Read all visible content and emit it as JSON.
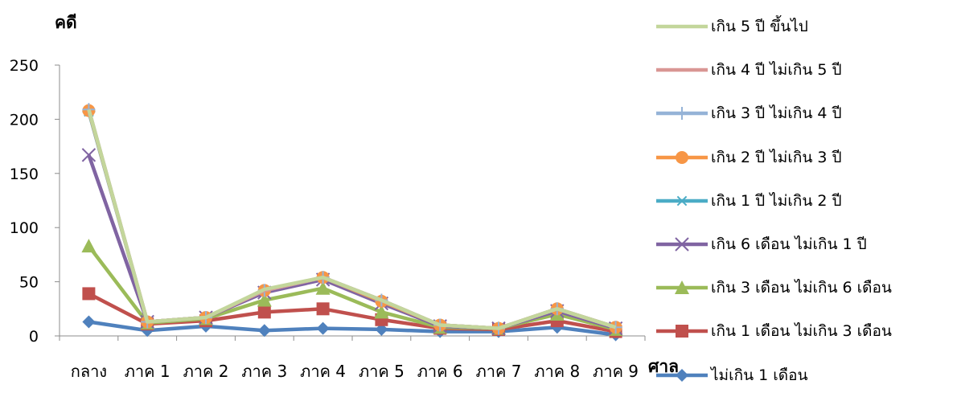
{
  "chart_data": {
    "type": "line",
    "ylabel": "คดี",
    "xlabel": "ศาล",
    "categories": [
      "กลาง",
      "ภาค 1",
      "ภาค 2",
      "ภาค 3",
      "ภาค 4",
      "ภาค 5",
      "ภาค 6",
      "ภาค 7",
      "ภาค 8",
      "ภาค 9"
    ],
    "ylim": [
      0,
      250
    ],
    "yticks": [
      0,
      50,
      100,
      150,
      200,
      250
    ],
    "legend_position": "right",
    "series": [
      {
        "name": "ไม่เกิน 1 เดือน",
        "color": "#4F81BD",
        "marker": "diamond",
        "values": [
          13,
          5,
          9,
          5,
          7,
          6,
          4,
          4,
          8,
          1
        ]
      },
      {
        "name": "เกิน 1 เดือน ไม่เกิน 3 เดือน",
        "color": "#C0504D",
        "marker": "square",
        "values": [
          39,
          11,
          14,
          22,
          25,
          15,
          7,
          6,
          14,
          4
        ]
      },
      {
        "name": "เกิน 3 เดือน ไม่เกิน 6 เดือน",
        "color": "#9BBB59",
        "marker": "triangle",
        "values": [
          83,
          12,
          16,
          33,
          44,
          22,
          8,
          7,
          20,
          6
        ]
      },
      {
        "name": "เกิน 6 เดือน ไม่เกิน 1 ปี",
        "color": "#8064A2",
        "marker": "x",
        "values": [
          167,
          13,
          17,
          40,
          52,
          30,
          9,
          7,
          23,
          7
        ]
      },
      {
        "name": "เกิน 1 ปี ไม่เกิน 2 ปี",
        "color": "#4BACC6",
        "marker": "star",
        "values": [
          207,
          13,
          17,
          42,
          54,
          32,
          10,
          7,
          25,
          8
        ]
      },
      {
        "name": "เกิน 2 ปี ไม่เกิน 3 ปี",
        "color": "#F79646",
        "marker": "circle",
        "values": [
          208,
          13,
          17,
          42,
          54,
          32,
          10,
          7,
          25,
          8
        ]
      },
      {
        "name": "เกิน 3 ปี ไม่เกิน 4 ปี",
        "color": "#95B3D7",
        "marker": "plus",
        "values": [
          209,
          13,
          17,
          42,
          54,
          33,
          10,
          7,
          25,
          8
        ]
      },
      {
        "name": "เกิน 4 ปี ไม่เกิน 5 ปี",
        "color": "#D99694",
        "marker": "none",
        "values": [
          209,
          13,
          17,
          42,
          54,
          33,
          10,
          7,
          25,
          8
        ]
      },
      {
        "name": "เกิน 5 ปี ขึ้นไป",
        "color": "#C3D69B",
        "marker": "none",
        "values": [
          209,
          13,
          17,
          43,
          54,
          33,
          10,
          7,
          25,
          8
        ]
      }
    ]
  }
}
